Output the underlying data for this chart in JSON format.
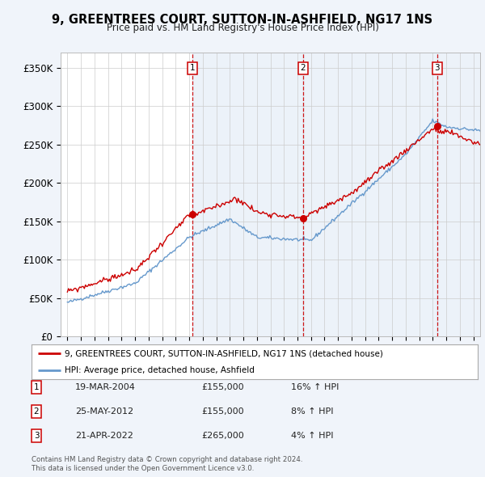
{
  "title": "9, GREENTREES COURT, SUTTON-IN-ASHFIELD, NG17 1NS",
  "subtitle": "Price paid vs. HM Land Registry's House Price Index (HPI)",
  "legend_label_red": "9, GREENTREES COURT, SUTTON-IN-ASHFIELD, NG17 1NS (detached house)",
  "legend_label_blue": "HPI: Average price, detached house, Ashfield",
  "footer1": "Contains HM Land Registry data © Crown copyright and database right 2024.",
  "footer2": "This data is licensed under the Open Government Licence v3.0.",
  "transactions": [
    {
      "num": 1,
      "date": "19-MAR-2004",
      "price": "£155,000",
      "hpi": "16% ↑ HPI",
      "year": 2004.22
    },
    {
      "num": 2,
      "date": "25-MAY-2012",
      "price": "£155,000",
      "hpi": "8% ↑ HPI",
      "year": 2012.4
    },
    {
      "num": 3,
      "date": "21-APR-2022",
      "price": "£265,000",
      "hpi": "4% ↑ HPI",
      "year": 2022.31
    }
  ],
  "ylim": [
    0,
    370000
  ],
  "yticks": [
    0,
    50000,
    100000,
    150000,
    200000,
    250000,
    300000,
    350000
  ],
  "ytick_labels": [
    "£0",
    "£50K",
    "£100K",
    "£150K",
    "£200K",
    "£250K",
    "£300K",
    "£350K"
  ],
  "xlim_start": 1994.5,
  "xlim_end": 2025.5,
  "bg_color": "#f0f4fa",
  "plot_bg": "#ffffff",
  "red_color": "#cc0000",
  "blue_color": "#6699cc",
  "shade_color": "#dde8f5"
}
